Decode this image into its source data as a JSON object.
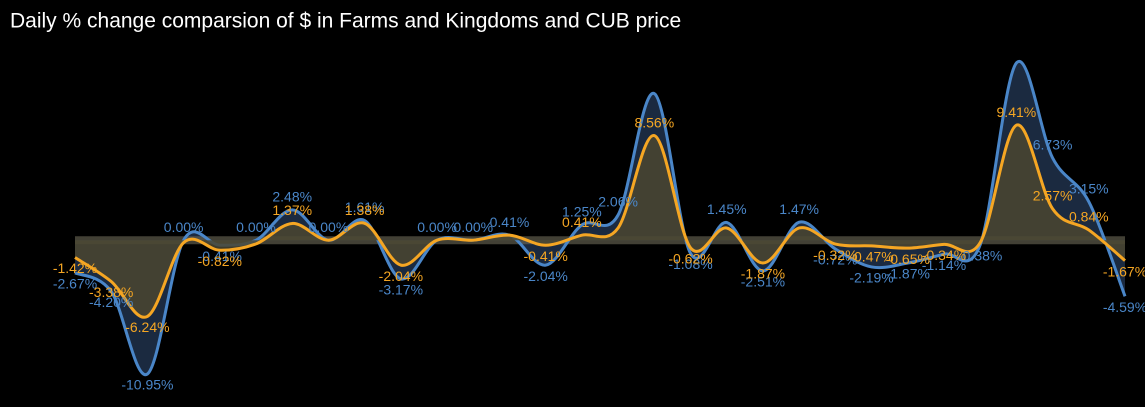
{
  "chart_data": {
    "type": "area",
    "title": "Daily % change comparsion of $ in Farms and Kingdoms and CUB price",
    "series": [
      {
        "color": "#4a86c8",
        "fill": "#1b2a40",
        "values": [
          -2.67,
          -4.2,
          -10.95,
          0.0,
          -0.41,
          0.0,
          2.48,
          0.0,
          1.61,
          -3.17,
          0.0,
          0.0,
          0.41,
          -2.04,
          1.25,
          2.06,
          12.0,
          -1.08,
          1.45,
          -2.51,
          1.47,
          -0.72,
          -2.19,
          -1.87,
          -1.14,
          -0.38,
          14.5,
          6.73,
          3.15,
          -4.59
        ],
        "value_labels": [
          "-2.67%",
          "-4.20%",
          "-10.95%",
          "0.00%",
          "-0.41%",
          "0.00%",
          "2.48%",
          "0.00%",
          "1.61%",
          "-3.17%",
          "0.00%",
          "0.00%",
          "0.41%",
          "-2.04%",
          "1.25%",
          "2.06%",
          null,
          "-1.08%",
          "1.45%",
          "-2.51%",
          "1.47%",
          "-0.72%",
          "-2.19%",
          "-1.87%",
          "-1.14%",
          "-0.38%",
          null,
          "6.73%",
          "3.15%",
          "-4.59%"
        ]
      },
      {
        "color": "#f5a623",
        "fill": "#4a4530",
        "values": [
          -1.42,
          -3.38,
          -6.24,
          -0.2,
          -0.82,
          -0.3,
          1.37,
          0.0,
          1.38,
          -2.04,
          0.0,
          0.0,
          0.41,
          -0.41,
          0.41,
          1.0,
          8.56,
          -0.62,
          1.0,
          -1.87,
          1.0,
          -0.32,
          -0.47,
          -0.65,
          -0.34,
          -0.2,
          9.41,
          2.57,
          0.84,
          -1.67
        ],
        "value_labels": [
          "-1.42%",
          "-3.38%",
          "-6.24%",
          null,
          "-0.82%",
          null,
          "1.37%",
          null,
          "1.38%",
          "-2.04%",
          null,
          null,
          null,
          "-0.41%",
          "0.41%",
          null,
          "8.56%",
          "-0.62%",
          null,
          "-1.87%",
          null,
          "-0.32%",
          "-0.47%",
          "-0.65%",
          "-0.34%",
          null,
          "9.41%",
          "2.57%",
          "0.84%",
          "-1.67%"
        ]
      }
    ]
  }
}
